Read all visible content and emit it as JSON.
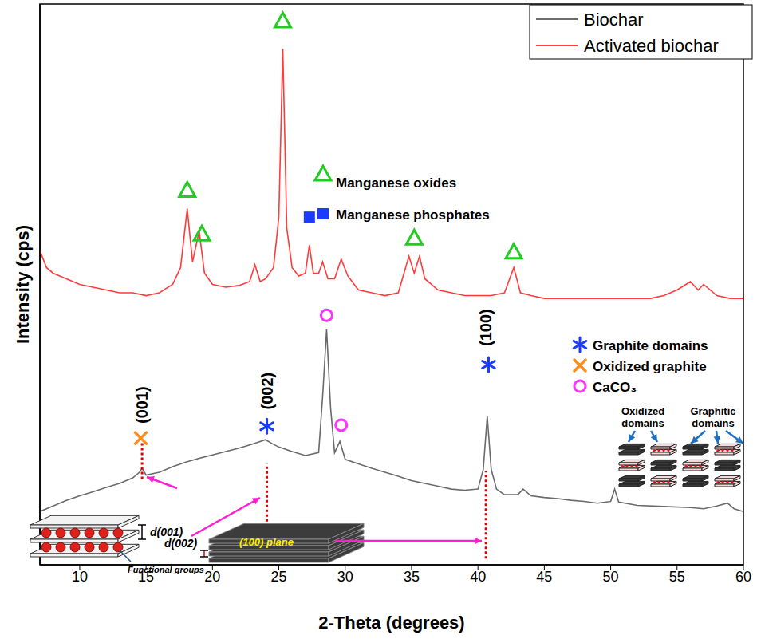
{
  "chart_data": {
    "type": "line",
    "x_label": "2-Theta (degrees)",
    "y_label": "Intensity (cps)",
    "xlim": [
      7,
      60
    ],
    "xticks": [
      10,
      15,
      20,
      25,
      30,
      35,
      40,
      45,
      50,
      55,
      60
    ],
    "ylim": [
      0,
      100
    ],
    "yticks": [],
    "tick_labels": "x",
    "grid": false,
    "legend": "top-right",
    "series": [
      {
        "name": "Biochar",
        "color": "#6b6b6b",
        "x": [
          7,
          8,
          9,
          10,
          11,
          12,
          13,
          14,
          14.5,
          14.7,
          15,
          16,
          17,
          18,
          19,
          20,
          21,
          22,
          23,
          24,
          24.5,
          25,
          26,
          27,
          28,
          28.3,
          28.6,
          28.9,
          29.2,
          29.6,
          30,
          31,
          32,
          33,
          34,
          35,
          36,
          37,
          38,
          39,
          40,
          40.4,
          40.7,
          41,
          41.4,
          42,
          43,
          43.4,
          44,
          45,
          46,
          47,
          48,
          49,
          50,
          50.3,
          50.6,
          52,
          54,
          56,
          57,
          58,
          58.8,
          59.3,
          60
        ],
        "values": [
          9.5,
          10.5,
          11.5,
          12.3,
          13,
          13.8,
          14.5,
          15.5,
          16.5,
          17.2,
          16,
          16.5,
          17.5,
          18.3,
          19,
          19.6,
          20.2,
          20.8,
          21.5,
          22.3,
          21.6,
          21,
          20.2,
          19.5,
          20,
          30,
          42,
          28,
          20,
          22,
          18.8,
          18,
          17.2,
          16.5,
          15.8,
          15,
          14.5,
          14,
          13.5,
          13.3,
          13.5,
          17,
          26.5,
          17,
          13.5,
          12.5,
          12.5,
          13.5,
          12.3,
          12,
          11.8,
          11.5,
          11.3,
          11,
          11.3,
          13.5,
          11.2,
          10.6,
          10.4,
          10.2,
          10,
          10.5,
          11,
          10,
          9.5
        ]
      },
      {
        "name": "Activated biochar",
        "color": "#ff3b3b",
        "x": [
          7,
          7.5,
          8,
          9,
          10,
          11,
          12,
          13,
          14,
          15,
          16,
          17,
          17.6,
          18.1,
          18.5,
          19,
          19.4,
          20,
          21,
          22,
          22.8,
          23.2,
          23.6,
          24,
          24.6,
          25,
          25.3,
          25.6,
          26,
          26.5,
          27,
          27.3,
          27.6,
          28,
          28.3,
          28.7,
          29.2,
          29.7,
          30.2,
          31,
          32,
          33,
          34,
          34.8,
          35.2,
          35.6,
          36,
          37,
          38,
          39,
          40,
          41,
          42,
          42.7,
          43.2,
          44,
          45,
          46,
          47,
          48,
          49,
          50,
          51,
          52,
          53,
          54,
          55,
          56,
          56.6,
          57,
          58,
          59,
          60
        ],
        "values": [
          56,
          53,
          52,
          51,
          50,
          49.5,
          49,
          48.5,
          48.5,
          48,
          48.5,
          50,
          53,
          63.5,
          54,
          59.5,
          52,
          50,
          49.5,
          49.8,
          50.5,
          53.5,
          50.5,
          51,
          53,
          62,
          92,
          60,
          53,
          51.5,
          52,
          57,
          52,
          52,
          54,
          51,
          51,
          54.5,
          51.5,
          49,
          48.5,
          48,
          48.5,
          55,
          52,
          55,
          51,
          49,
          48.5,
          48,
          48,
          48,
          48.5,
          53,
          48.5,
          48,
          47.5,
          47.5,
          47.5,
          47.5,
          47.5,
          47.5,
          47.5,
          47.5,
          47.5,
          48,
          49,
          50.5,
          49,
          50,
          48,
          47.5,
          47.5
        ]
      }
    ],
    "peak_markers": [
      {
        "name": "Manganese oxides",
        "marker": "open_triangle",
        "color": "#22cc22",
        "x": [
          18.1,
          19.2,
          25.3,
          35.2,
          42.7
        ],
        "y": [
          66.8,
          59,
          97,
          58.3,
          55.8
        ]
      },
      {
        "name": "Manganese phosphates",
        "marker": "square",
        "color": "#1a3cff",
        "x": [
          27.3
        ],
        "y": [
          62
        ]
      },
      {
        "name": "Graphite domains",
        "marker": "asterisk",
        "color": "#1a3cff",
        "x": [
          24.1,
          40.8
        ],
        "y": [
          24.7,
          35.7
        ]
      },
      {
        "name": "Oxidized graphite",
        "marker": "x",
        "color": "#ff8c1a",
        "x": [
          14.6
        ],
        "y": [
          22.6
        ]
      },
      {
        "name": "CaCO₃",
        "marker": "open_circle",
        "color": "#ff33ff",
        "x": [
          28.6,
          29.7
        ],
        "y": [
          44.5,
          24.9
        ]
      }
    ],
    "plane_labels": [
      {
        "text": "(001)",
        "x": 14.7,
        "y": 28.5,
        "line_y": [
          15.3,
          22
        ]
      },
      {
        "text": "(002)",
        "x": 24.1,
        "y": 31,
        "line_y": [
          6,
          18
        ]
      },
      {
        "text": "(100)",
        "x": 40.6,
        "y": 42.3,
        "line_y": [
          1.1,
          16.7
        ]
      }
    ],
    "insets": {
      "d001": "d(001)",
      "functional_groups": "Functional groups",
      "d002": "d(002)",
      "plane_100": "(100) plane",
      "oxidized_domains": "Oxidized domains",
      "graphitic_domains": "Graphitic domains"
    }
  }
}
